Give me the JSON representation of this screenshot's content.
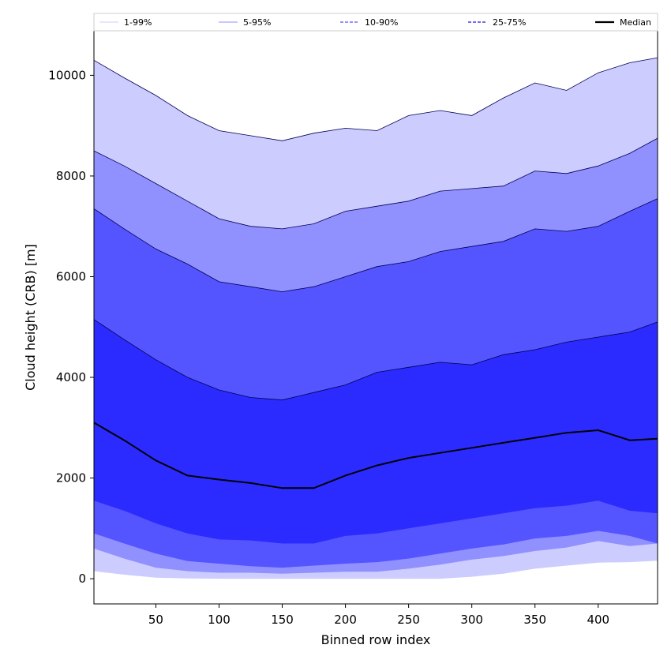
{
  "chart_data": {
    "type": "area",
    "title": "",
    "xlabel": "Binned row index",
    "ylabel": "Cloud height (CRB) [m]",
    "xlim": [
      1,
      447
    ],
    "ylim": [
      -500,
      10900
    ],
    "xticks": [
      50,
      100,
      150,
      200,
      250,
      300,
      350,
      400
    ],
    "yticks": [
      0,
      2000,
      4000,
      6000,
      8000,
      10000
    ],
    "grid": false,
    "legend": {
      "position": "top",
      "entries": [
        {
          "label": "1-99%",
          "style": "thin",
          "color": "#ccccff"
        },
        {
          "label": "5-95%",
          "style": "thin",
          "color": "#9090ff"
        },
        {
          "label": "10-90%",
          "style": "dashed",
          "color": "#7070ff"
        },
        {
          "label": "25-75%",
          "style": "dashed",
          "color": "#4040ee"
        },
        {
          "label": "Median",
          "style": "solid",
          "color": "#000000"
        }
      ]
    },
    "x": [
      1,
      25,
      50,
      75,
      100,
      125,
      150,
      175,
      200,
      225,
      250,
      275,
      300,
      325,
      350,
      375,
      400,
      425,
      447
    ],
    "bands": [
      {
        "name": "1-99%",
        "color": "#ccccff",
        "lower": [
          150,
          80,
          20,
          5,
          0,
          0,
          0,
          0,
          0,
          0,
          0,
          0,
          40,
          100,
          200,
          260,
          320,
          330,
          360
        ],
        "upper": [
          10300,
          9950,
          9600,
          9200,
          8900,
          8800,
          8700,
          8850,
          8950,
          8900,
          9200,
          9300,
          9200,
          9550,
          9850,
          9700,
          10050,
          10250,
          10350
        ]
      },
      {
        "name": "5-95%",
        "color": "#9090ff",
        "lower": [
          600,
          400,
          220,
          150,
          120,
          120,
          100,
          120,
          140,
          140,
          200,
          280,
          380,
          450,
          550,
          620,
          750,
          650,
          700
        ],
        "upper": [
          8500,
          8200,
          7850,
          7500,
          7150,
          7000,
          6950,
          7050,
          7300,
          7400,
          7500,
          7700,
          7750,
          7800,
          8100,
          8050,
          8200,
          8450,
          8750
        ]
      },
      {
        "name": "10-90%",
        "color": "#5555ff",
        "lower": [
          900,
          700,
          500,
          350,
          300,
          250,
          220,
          260,
          300,
          330,
          400,
          500,
          600,
          680,
          800,
          850,
          950,
          850,
          700
        ],
        "upper": [
          7350,
          6950,
          6550,
          6250,
          5900,
          5800,
          5700,
          5800,
          6000,
          6200,
          6300,
          6500,
          6600,
          6700,
          6950,
          6900,
          7000,
          7300,
          7550
        ]
      },
      {
        "name": "25-75%",
        "color": "#2b2bff",
        "lower": [
          1550,
          1350,
          1100,
          900,
          780,
          760,
          700,
          700,
          850,
          900,
          1000,
          1100,
          1200,
          1300,
          1400,
          1450,
          1550,
          1350,
          1300
        ],
        "upper": [
          5150,
          4750,
          4350,
          4000,
          3750,
          3600,
          3550,
          3700,
          3850,
          4100,
          4200,
          4300,
          4250,
          4450,
          4550,
          4700,
          4800,
          4900,
          5100
        ]
      }
    ],
    "series": [
      {
        "name": "Median",
        "color": "#000000",
        "values": [
          3100,
          2750,
          2350,
          2050,
          1970,
          1900,
          1800,
          1800,
          2050,
          2250,
          2400,
          2500,
          2600,
          2700,
          2800,
          2900,
          2950,
          2750,
          2780
        ]
      }
    ]
  }
}
